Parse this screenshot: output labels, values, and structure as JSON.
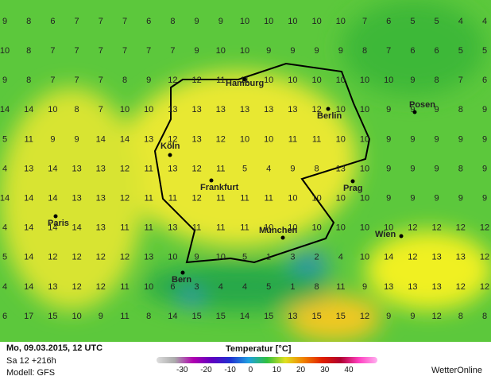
{
  "map": {
    "grid": [
      [
        9,
        8,
        6,
        7,
        7,
        7,
        6,
        8,
        9,
        9,
        10,
        10,
        10,
        10,
        10,
        7,
        6,
        5,
        5,
        4,
        4
      ],
      [
        10,
        8,
        7,
        7,
        7,
        7,
        7,
        7,
        9,
        10,
        10,
        9,
        9,
        9,
        9,
        8,
        7,
        6,
        6,
        5,
        5
      ],
      [
        9,
        8,
        7,
        7,
        7,
        8,
        9,
        12,
        12,
        11,
        11,
        10,
        10,
        10,
        10,
        10,
        10,
        9,
        8,
        7,
        6
      ],
      [
        14,
        14,
        10,
        8,
        7,
        10,
        10,
        13,
        13,
        13,
        13,
        13,
        13,
        12,
        10,
        10,
        9,
        9,
        9,
        8,
        9
      ],
      [
        5,
        11,
        9,
        9,
        14,
        14,
        13,
        12,
        13,
        12,
        10,
        10,
        11,
        11,
        10,
        10,
        9,
        9,
        9,
        9,
        9
      ],
      [
        4,
        13,
        14,
        13,
        13,
        12,
        11,
        13,
        12,
        11,
        5,
        4,
        9,
        8,
        13,
        10,
        9,
        9,
        9,
        8,
        9
      ],
      [
        14,
        14,
        14,
        13,
        13,
        12,
        11,
        11,
        12,
        11,
        11,
        11,
        10,
        10,
        10,
        10,
        9,
        9,
        9,
        9,
        9
      ],
      [
        4,
        14,
        14,
        14,
        13,
        11,
        11,
        13,
        11,
        11,
        11,
        10,
        10,
        10,
        10,
        10,
        10,
        12,
        12,
        12,
        12
      ],
      [
        5,
        14,
        12,
        12,
        12,
        12,
        13,
        10,
        9,
        10,
        5,
        1,
        3,
        2,
        4,
        10,
        14,
        12,
        13,
        13,
        12
      ],
      [
        4,
        14,
        13,
        12,
        12,
        11,
        10,
        6,
        3,
        4,
        4,
        5,
        1,
        8,
        11,
        9,
        13,
        13,
        13,
        12,
        12
      ],
      [
        6,
        17,
        15,
        10,
        9,
        11,
        8,
        14,
        15,
        15,
        14,
        15,
        13,
        15,
        15,
        12,
        9,
        9,
        12,
        8,
        8
      ]
    ],
    "cities": [
      "Hamburg",
      "Berlin",
      "Posen",
      "Köln",
      "Frankfurt",
      "Prag",
      "Paris",
      "Wien",
      "München",
      "Bern"
    ]
  },
  "footer": {
    "date": "Mo, 09.03.2015, 12 UTC",
    "run": "Sa 12 +216h",
    "model": "Modell: GFS",
    "legend_title": "Temperatur [°C]",
    "scale": [
      -30,
      -20,
      -10,
      0,
      10,
      20,
      30,
      40
    ],
    "brand": "WetterOnline"
  }
}
